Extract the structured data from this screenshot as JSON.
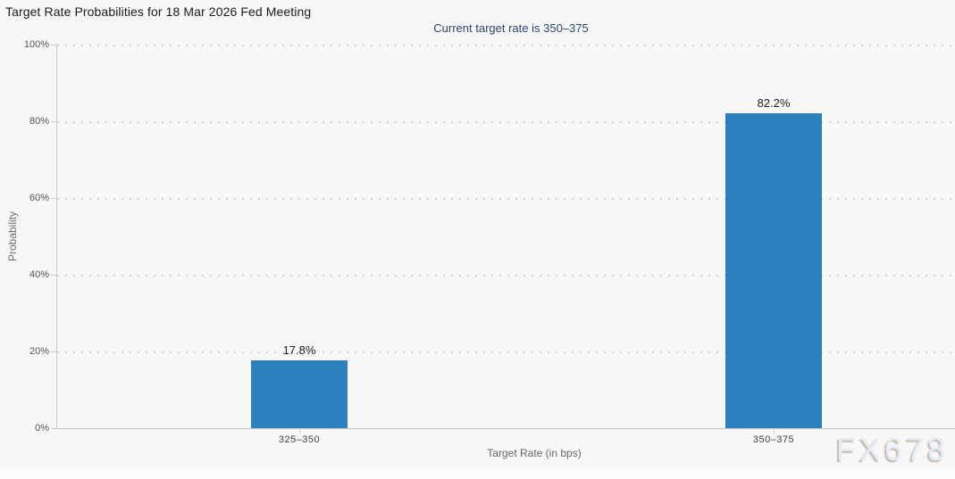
{
  "chart_data": {
    "type": "bar",
    "title": "Target Rate Probabilities for 18 Mar 2026 Fed Meeting",
    "subtitle": "Current target rate is 350–375",
    "categories": [
      "325–350",
      "350–375"
    ],
    "values": [
      17.8,
      82.2
    ],
    "data_labels": [
      "17.8%",
      "82.2%"
    ],
    "xlabel": "Target Rate (in bps)",
    "ylabel": "Probability",
    "ylim": [
      0,
      100
    ],
    "yticks": [
      "0%",
      "20%",
      "40%",
      "60%",
      "80%",
      "100%"
    ],
    "grid": "horizontal-dotted",
    "legend": "none",
    "bar_color": "#2c80bd",
    "subtitle_color": "#28486e",
    "background_color": "#f7f7f7",
    "watermark": "FX678"
  }
}
